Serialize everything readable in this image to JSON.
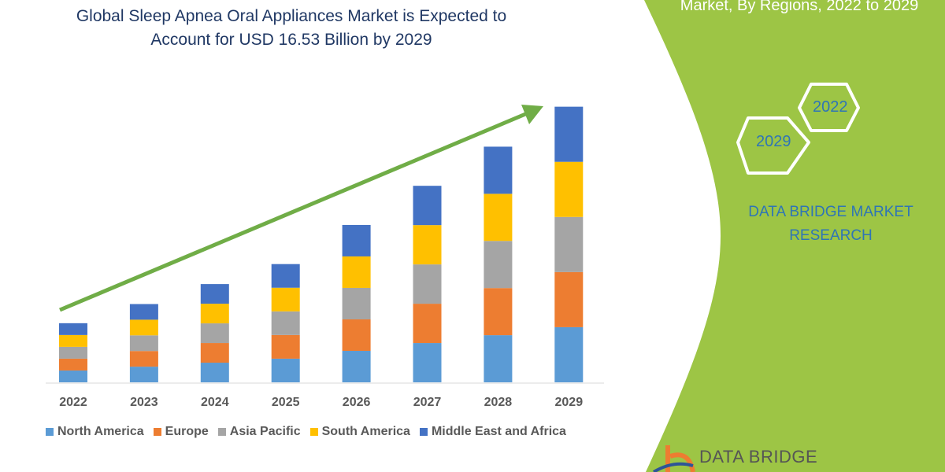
{
  "title_lines": [
    "Global Sleep Apnea Oral Appliances Market is Expected to",
    "Account for USD 16.53 Billion by 2029"
  ],
  "side_panel": {
    "title": "Market, By Regions, 2022 to 2029",
    "hex_labels": [
      "2022",
      "2029"
    ],
    "brand_lines": [
      "DATA BRIDGE MARKET",
      "RESEARCH"
    ],
    "logo_text": "DATA BRIDGE",
    "panel_color": "#9dc545"
  },
  "chart_data": {
    "type": "bar",
    "stacked": true,
    "title": "Global Sleep Apnea Oral Appliances Market is Expected to Account for USD 16.53 Billion by 2029",
    "xlabel": "",
    "ylabel": "",
    "grid": false,
    "legend_position": "bottom",
    "trend_arrow": true,
    "categories": [
      "2022",
      "2023",
      "2024",
      "2025",
      "2026",
      "2027",
      "2028",
      "2029"
    ],
    "series": [
      {
        "name": "North America",
        "color": "#5b9bd5",
        "values": [
          0.71,
          0.94,
          1.18,
          1.42,
          1.89,
          2.36,
          2.83,
          3.31
        ]
      },
      {
        "name": "Europe",
        "color": "#ed7d31",
        "values": [
          0.71,
          0.94,
          1.18,
          1.42,
          1.89,
          2.36,
          2.83,
          3.31
        ]
      },
      {
        "name": "Asia Pacific",
        "color": "#a5a5a5",
        "values": [
          0.71,
          0.94,
          1.18,
          1.42,
          1.89,
          2.36,
          2.83,
          3.31
        ]
      },
      {
        "name": "South America",
        "color": "#ffc000",
        "values": [
          0.71,
          0.94,
          1.18,
          1.42,
          1.89,
          2.36,
          2.83,
          3.31
        ]
      },
      {
        "name": "Middle East and Africa",
        "color": "#4472c4",
        "values": [
          0.71,
          0.94,
          1.18,
          1.42,
          1.89,
          2.36,
          2.83,
          3.31
        ]
      }
    ],
    "arrow_color": "#70ad47"
  }
}
